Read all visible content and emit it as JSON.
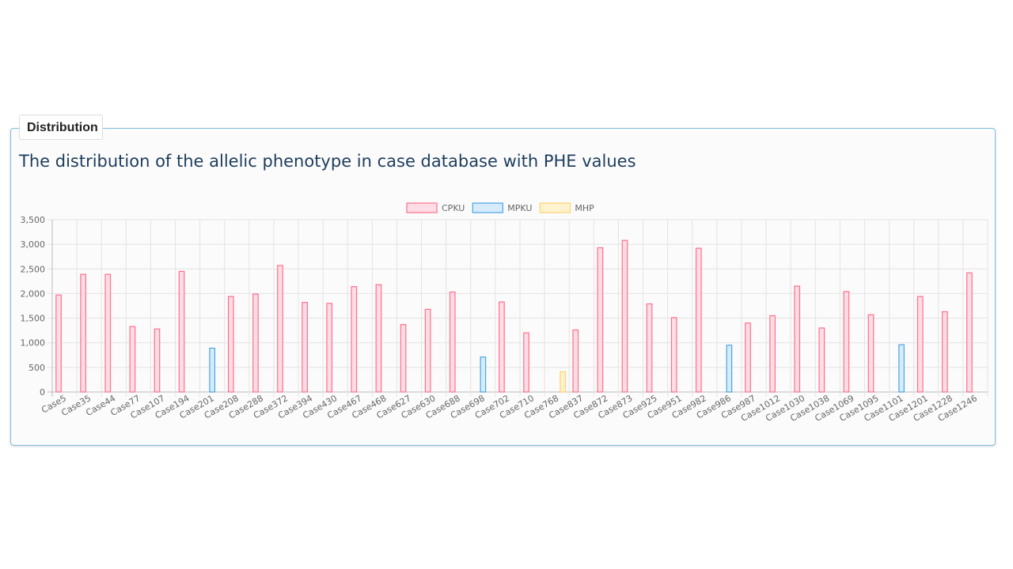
{
  "panel": {
    "tab_label": "Distribution",
    "heading": "The distribution of the allelic phenotype in case database with PHE values"
  },
  "chart_data": {
    "type": "bar",
    "title": "",
    "xlabel": "",
    "ylabel": "",
    "ylim": [
      0,
      3500
    ],
    "yticks": [
      "0",
      "500",
      "1,000",
      "1,500",
      "2,000",
      "2,500",
      "3,000",
      "3,500"
    ],
    "grid": true,
    "legend_position": "top-center",
    "categories": [
      "Case5",
      "Case35",
      "Case44",
      "Case77",
      "Case107",
      "Case194",
      "Case201",
      "Case208",
      "Case288",
      "Case372",
      "Case394",
      "Case430",
      "Case467",
      "Case468",
      "Case627",
      "Case630",
      "Case688",
      "Case698",
      "Case702",
      "Case710",
      "Case768",
      "Case837",
      "Case872",
      "Case873",
      "Case925",
      "Case951",
      "Case982",
      "Case986",
      "Case987",
      "Case1012",
      "Case1030",
      "Case1038",
      "Case1069",
      "Case1095",
      "Case1101",
      "Case1201",
      "Case1228",
      "Case1246"
    ],
    "series": [
      {
        "name": "CPKU",
        "fill": "#ffdde4",
        "stroke": "#ff6f8e",
        "values": [
          1970,
          2390,
          2390,
          1330,
          1280,
          2450,
          null,
          1940,
          1990,
          2570,
          1820,
          1800,
          2140,
          2180,
          1370,
          1680,
          2030,
          null,
          1830,
          1200,
          null,
          1260,
          2930,
          3080,
          1790,
          1510,
          2920,
          null,
          1400,
          1550,
          2150,
          1300,
          2040,
          1570,
          null,
          1940,
          1630,
          2420
        ]
      },
      {
        "name": "MPKU",
        "fill": "#d6ecfb",
        "stroke": "#49a4e5",
        "values": [
          null,
          null,
          null,
          null,
          null,
          null,
          890,
          null,
          null,
          null,
          null,
          null,
          null,
          null,
          null,
          null,
          null,
          710,
          null,
          null,
          null,
          null,
          null,
          null,
          null,
          null,
          null,
          950,
          null,
          null,
          null,
          null,
          null,
          null,
          960,
          null,
          null,
          null
        ]
      },
      {
        "name": "MHP",
        "fill": "#fff2cf",
        "stroke": "#ffd36e",
        "values": [
          null,
          null,
          null,
          null,
          null,
          null,
          null,
          null,
          null,
          null,
          null,
          null,
          null,
          null,
          null,
          null,
          null,
          null,
          null,
          null,
          410,
          null,
          null,
          null,
          null,
          null,
          null,
          null,
          null,
          null,
          null,
          null,
          null,
          null,
          null,
          null,
          null,
          null
        ]
      }
    ]
  }
}
